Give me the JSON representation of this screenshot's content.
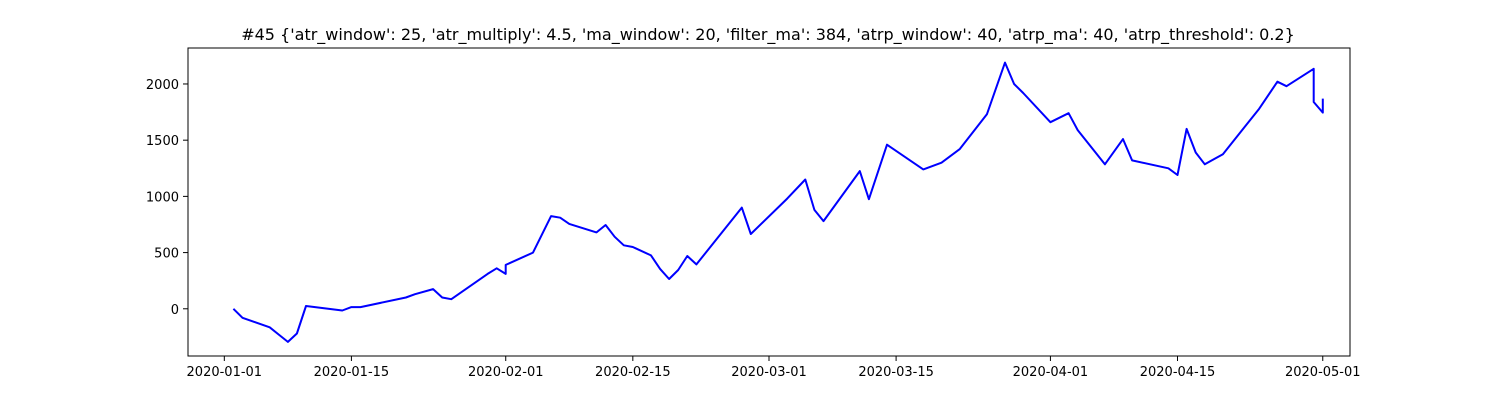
{
  "chart_data": {
    "type": "line",
    "title": "#45 {'atr_window': 25, 'atr_multiply': 4.5, 'ma_window': 20, 'filter_ma': 384, 'atrp_window': 40, 'atrp_ma': 40, 'atrp_threshold': 0.2}",
    "xlabel": "",
    "ylabel": "",
    "x_axis": "date",
    "xlim": [
      "2019-12-28",
      "2020-05-04"
    ],
    "ylim": [
      -420,
      2320
    ],
    "grid": false,
    "line_color": "#0000ff",
    "x_ticks": [
      "2020-01-01",
      "2020-01-15",
      "2020-02-01",
      "2020-02-15",
      "2020-03-01",
      "2020-03-15",
      "2020-04-01",
      "2020-04-15",
      "2020-05-01"
    ],
    "y_ticks": [
      0,
      500,
      1000,
      1500,
      2000
    ],
    "series": [
      {
        "points": [
          [
            "2020-01-02",
            0
          ],
          [
            "2020-01-03",
            -80
          ],
          [
            "2020-01-06",
            -165
          ],
          [
            "2020-01-07",
            -230
          ],
          [
            "2020-01-08",
            -295
          ],
          [
            "2020-01-09",
            -220
          ],
          [
            "2020-01-10",
            25
          ],
          [
            "2020-01-14",
            -15
          ],
          [
            "2020-01-15",
            15
          ],
          [
            "2020-01-16",
            15
          ],
          [
            "2020-01-21",
            100
          ],
          [
            "2020-01-22",
            130
          ],
          [
            "2020-01-24",
            175
          ],
          [
            "2020-01-25",
            100
          ],
          [
            "2020-01-26",
            85
          ],
          [
            "2020-01-30",
            310
          ],
          [
            "2020-01-31",
            360
          ],
          [
            "2020-02-01",
            310
          ],
          [
            "2020-02-01",
            390
          ],
          [
            "2020-02-04",
            500
          ],
          [
            "2020-02-06",
            825
          ],
          [
            "2020-02-07",
            810
          ],
          [
            "2020-02-08",
            755
          ],
          [
            "2020-02-11",
            680
          ],
          [
            "2020-02-12",
            745
          ],
          [
            "2020-02-13",
            640
          ],
          [
            "2020-02-14",
            565
          ],
          [
            "2020-02-15",
            550
          ],
          [
            "2020-02-17",
            475
          ],
          [
            "2020-02-18",
            355
          ],
          [
            "2020-02-19",
            265
          ],
          [
            "2020-02-20",
            345
          ],
          [
            "2020-02-21",
            470
          ],
          [
            "2020-02-22",
            395
          ],
          [
            "2020-02-27",
            900
          ],
          [
            "2020-02-28",
            665
          ],
          [
            "2020-03-03",
            980
          ],
          [
            "2020-03-05",
            1150
          ],
          [
            "2020-03-06",
            880
          ],
          [
            "2020-03-07",
            780
          ],
          [
            "2020-03-11",
            1225
          ],
          [
            "2020-03-12",
            975
          ],
          [
            "2020-03-14",
            1460
          ],
          [
            "2020-03-18",
            1240
          ],
          [
            "2020-03-20",
            1300
          ],
          [
            "2020-03-22",
            1420
          ],
          [
            "2020-03-25",
            1730
          ],
          [
            "2020-03-27",
            2190
          ],
          [
            "2020-03-28",
            2000
          ],
          [
            "2020-03-29",
            1920
          ],
          [
            "2020-04-01",
            1660
          ],
          [
            "2020-04-03",
            1740
          ],
          [
            "2020-04-04",
            1590
          ],
          [
            "2020-04-07",
            1285
          ],
          [
            "2020-04-09",
            1510
          ],
          [
            "2020-04-10",
            1320
          ],
          [
            "2020-04-14",
            1250
          ],
          [
            "2020-04-15",
            1190
          ],
          [
            "2020-04-16",
            1600
          ],
          [
            "2020-04-17",
            1390
          ],
          [
            "2020-04-18",
            1285
          ],
          [
            "2020-04-19",
            1330
          ],
          [
            "2020-04-20",
            1375
          ],
          [
            "2020-04-24",
            1780
          ],
          [
            "2020-04-26",
            2020
          ],
          [
            "2020-04-27",
            1980
          ],
          [
            "2020-04-30",
            2135
          ],
          [
            "2020-04-30",
            1840
          ],
          [
            "2020-05-01",
            1745
          ],
          [
            "2020-05-01",
            1870
          ]
        ]
      }
    ]
  }
}
